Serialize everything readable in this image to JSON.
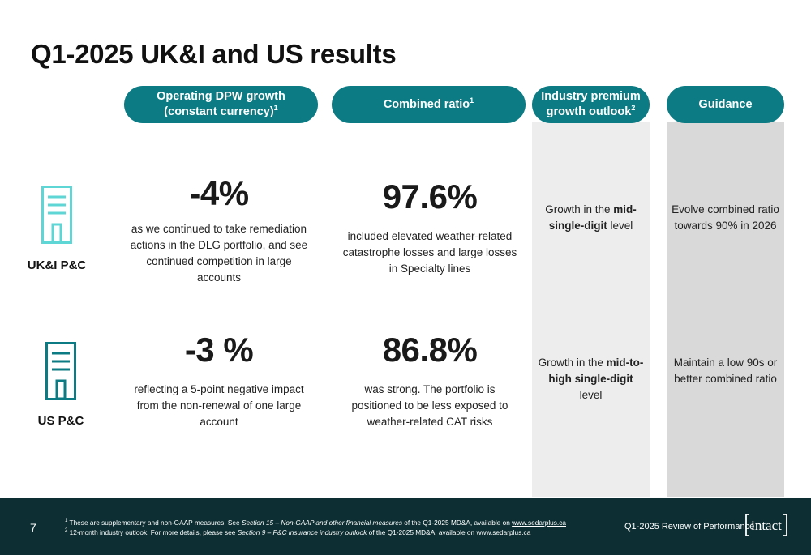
{
  "title": "Q1-2025 UK&I and US results",
  "headers": {
    "dpw_line1": "Operating DPW growth",
    "dpw_line2": "(constant currency)",
    "dpw_sup": "1",
    "cr": "Combined ratio",
    "cr_sup": "1",
    "ind_line1": "Industry premium",
    "ind_line2": "growth outlook",
    "ind_sup": "2",
    "guid": "Guidance"
  },
  "rows": [
    {
      "segment": "UK&I P&C",
      "dpw_value": "-4%",
      "dpw_desc": "as we continued to take remediation actions in the DLG portfolio, and see continued competition in large accounts",
      "cr_value": "97.6%",
      "cr_desc": "included elevated weather-related catastrophe losses and large losses in Specialty lines",
      "ind_pre": "Growth in the ",
      "ind_bold": "mid-single-digit",
      "ind_post": " level",
      "guidance": "Evolve combined ratio towards 90% in 2026",
      "icon_color": "#5fd6d6"
    },
    {
      "segment": "US P&C",
      "dpw_value": "-3 %",
      "dpw_desc": "reflecting a 5-point negative impact from the non-renewal of one large account",
      "cr_value": "86.8%",
      "cr_desc": "was strong. The portfolio is positioned to be less exposed to weather-related CAT risks",
      "ind_pre": "Growth in the ",
      "ind_bold": "mid-to-high single-digit",
      "ind_post": " level",
      "guidance": "Maintain a low 90s or better combined ratio",
      "icon_color": "#0c7b83"
    }
  ],
  "footer": {
    "page_number": "7",
    "note1_sup": "1",
    "note1_pre": " These are supplementary and non-GAAP measures. See ",
    "note1_ital": "Section 15 – Non-GAAP and other financial measures",
    "note1_post": " of the Q1-2025 MD&A, available on ",
    "note1_link": "www.sedarplus.ca",
    "note2_sup": "2",
    "note2_pre": " 12-month industry outlook. For more details, please see ",
    "note2_ital": "Section 9 – P&C insurance industry outlook",
    "note2_post": " of the Q1-2025 MD&A, available on ",
    "note2_link": "www.sedarplus.ca",
    "review": "Q1-2025 Review of Performance",
    "logo_text": "intact"
  },
  "colors": {
    "teal": "#0c7b83",
    "footer_bg": "#0d2f33",
    "light_teal": "#5fd6d6"
  }
}
